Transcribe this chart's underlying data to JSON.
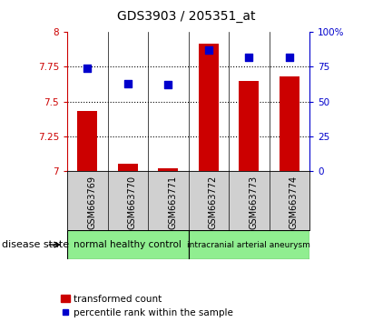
{
  "title": "GDS3903 / 205351_at",
  "samples": [
    "GSM663769",
    "GSM663770",
    "GSM663771",
    "GSM663772",
    "GSM663773",
    "GSM663774"
  ],
  "red_values": [
    7.43,
    7.05,
    7.02,
    7.92,
    7.65,
    7.68
  ],
  "blue_values": [
    74,
    63,
    62,
    87,
    82,
    82
  ],
  "ylim_left": [
    7.0,
    8.0
  ],
  "ylim_right": [
    0,
    100
  ],
  "yticks_left": [
    7.0,
    7.25,
    7.5,
    7.75,
    8.0
  ],
  "yticks_right": [
    0,
    25,
    50,
    75,
    100
  ],
  "ytick_labels_left": [
    "7",
    "7.25",
    "7.5",
    "7.75",
    "8"
  ],
  "ytick_labels_right": [
    "0",
    "25",
    "50",
    "75",
    "100%"
  ],
  "hlines": [
    7.25,
    7.5,
    7.75
  ],
  "bar_color": "#cc0000",
  "dot_color": "#0000cc",
  "group1_label": "normal healthy control",
  "group2_label": "intracranial arterial aneurysm",
  "group_color": "#90ee90",
  "disease_state_label": "disease state",
  "legend_red": "transformed count",
  "legend_blue": "percentile rank within the sample",
  "axis_color_left": "#cc0000",
  "axis_color_right": "#0000cc",
  "bar_width": 0.5,
  "dot_size": 40,
  "xtick_bg_color": "#d0d0d0",
  "plot_bg": "#ffffff"
}
